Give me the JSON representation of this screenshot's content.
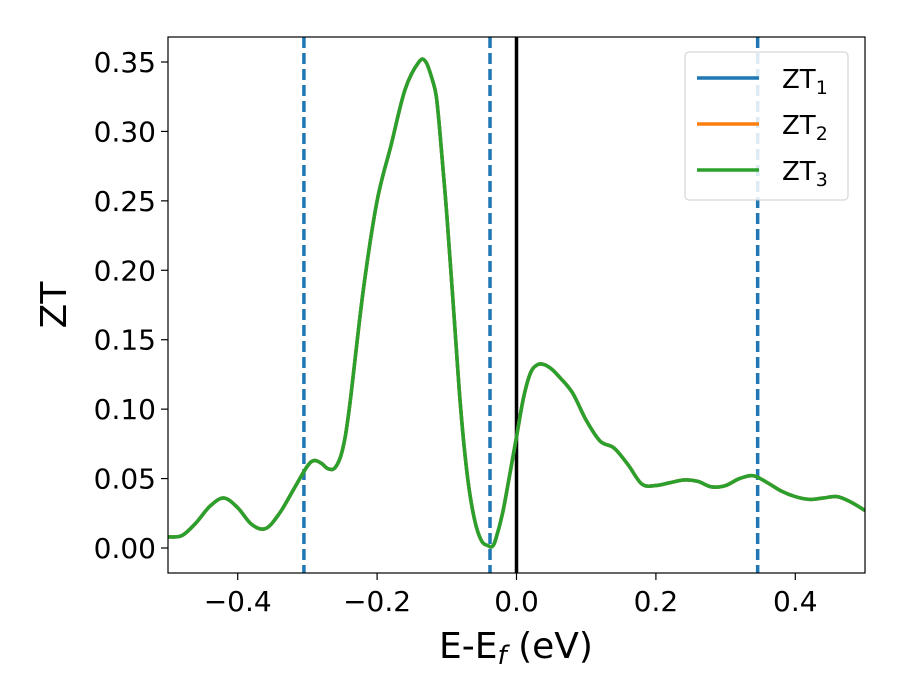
{
  "chart_data": {
    "type": "line",
    "xlabel": "E-E",
    "xlabel_sub": "f",
    "xlabel_unit": " (eV)",
    "ylabel": "ZT",
    "xlim": [
      -0.5,
      0.5
    ],
    "ylim": [
      -0.018,
      0.368
    ],
    "grid": false,
    "legend_position": "top-right",
    "x_ticks": [
      {
        "value": -0.4,
        "label": "−0.4"
      },
      {
        "value": -0.2,
        "label": "−0.2"
      },
      {
        "value": 0.0,
        "label": "0.0"
      },
      {
        "value": 0.2,
        "label": "0.2"
      },
      {
        "value": 0.4,
        "label": "0.4"
      }
    ],
    "y_ticks": [
      {
        "value": 0.0,
        "label": "0.00"
      },
      {
        "value": 0.05,
        "label": "0.05"
      },
      {
        "value": 0.1,
        "label": "0.10"
      },
      {
        "value": 0.15,
        "label": "0.15"
      },
      {
        "value": 0.2,
        "label": "0.20"
      },
      {
        "value": 0.25,
        "label": "0.25"
      },
      {
        "value": 0.3,
        "label": "0.30"
      },
      {
        "value": 0.35,
        "label": "0.35"
      }
    ],
    "vertical_lines": [
      {
        "x": -0.305,
        "style": "dashed",
        "color": "#1f77b4"
      },
      {
        "x": -0.038,
        "style": "dashed",
        "color": "#1f77b4"
      },
      {
        "x": 0.0,
        "style": "solid",
        "color": "#000000"
      },
      {
        "x": 0.346,
        "style": "dashed",
        "color": "#1f77b4"
      }
    ],
    "x": [
      -0.5,
      -0.48,
      -0.46,
      -0.44,
      -0.42,
      -0.4,
      -0.38,
      -0.36,
      -0.34,
      -0.32,
      -0.3,
      -0.29,
      -0.28,
      -0.27,
      -0.26,
      -0.25,
      -0.24,
      -0.22,
      -0.2,
      -0.18,
      -0.16,
      -0.14,
      -0.13,
      -0.12,
      -0.115,
      -0.11,
      -0.1,
      -0.09,
      -0.08,
      -0.07,
      -0.06,
      -0.05,
      -0.04,
      -0.035,
      -0.03,
      -0.02,
      -0.01,
      0.0,
      0.01,
      0.02,
      0.03,
      0.04,
      0.05,
      0.06,
      0.08,
      0.1,
      0.12,
      0.14,
      0.16,
      0.18,
      0.2,
      0.22,
      0.24,
      0.26,
      0.28,
      0.3,
      0.32,
      0.34,
      0.36,
      0.38,
      0.4,
      0.42,
      0.44,
      0.46,
      0.48,
      0.5
    ],
    "series": [
      {
        "name": "ZT",
        "sub": "1",
        "color": "#1f77b4",
        "values": [
          0.008,
          0.009,
          0.018,
          0.03,
          0.036,
          0.029,
          0.017,
          0.014,
          0.025,
          0.042,
          0.059,
          0.063,
          0.061,
          0.057,
          0.058,
          0.07,
          0.1,
          0.185,
          0.25,
          0.29,
          0.33,
          0.35,
          0.35,
          0.336,
          0.325,
          0.3,
          0.24,
          0.17,
          0.1,
          0.05,
          0.02,
          0.005,
          0.0015,
          0.001,
          0.006,
          0.025,
          0.052,
          0.08,
          0.108,
          0.126,
          0.132,
          0.132,
          0.129,
          0.124,
          0.112,
          0.092,
          0.077,
          0.072,
          0.06,
          0.046,
          0.045,
          0.047,
          0.049,
          0.048,
          0.044,
          0.045,
          0.05,
          0.052,
          0.047,
          0.041,
          0.037,
          0.035,
          0.036,
          0.037,
          0.033,
          0.027
        ]
      },
      {
        "name": "ZT",
        "sub": "2",
        "color": "#ff7f0e",
        "values": [
          0.008,
          0.009,
          0.018,
          0.03,
          0.036,
          0.029,
          0.017,
          0.014,
          0.025,
          0.042,
          0.059,
          0.063,
          0.061,
          0.057,
          0.058,
          0.07,
          0.1,
          0.185,
          0.25,
          0.29,
          0.33,
          0.35,
          0.35,
          0.336,
          0.325,
          0.3,
          0.24,
          0.17,
          0.1,
          0.05,
          0.02,
          0.005,
          0.0015,
          0.001,
          0.006,
          0.025,
          0.052,
          0.08,
          0.108,
          0.126,
          0.132,
          0.132,
          0.129,
          0.124,
          0.112,
          0.092,
          0.077,
          0.072,
          0.06,
          0.046,
          0.045,
          0.047,
          0.049,
          0.048,
          0.044,
          0.045,
          0.05,
          0.052,
          0.047,
          0.041,
          0.037,
          0.035,
          0.036,
          0.037,
          0.033,
          0.027
        ]
      },
      {
        "name": "ZT",
        "sub": "3",
        "color": "#2ca02c",
        "values": [
          0.008,
          0.009,
          0.018,
          0.03,
          0.036,
          0.029,
          0.017,
          0.014,
          0.025,
          0.042,
          0.059,
          0.063,
          0.061,
          0.057,
          0.058,
          0.07,
          0.1,
          0.185,
          0.25,
          0.29,
          0.33,
          0.35,
          0.35,
          0.336,
          0.325,
          0.3,
          0.24,
          0.17,
          0.1,
          0.05,
          0.02,
          0.005,
          0.0015,
          0.001,
          0.006,
          0.025,
          0.052,
          0.08,
          0.108,
          0.126,
          0.132,
          0.132,
          0.129,
          0.124,
          0.112,
          0.092,
          0.077,
          0.072,
          0.06,
          0.046,
          0.045,
          0.047,
          0.049,
          0.048,
          0.044,
          0.045,
          0.05,
          0.052,
          0.047,
          0.041,
          0.037,
          0.035,
          0.036,
          0.037,
          0.033,
          0.027
        ]
      }
    ]
  }
}
